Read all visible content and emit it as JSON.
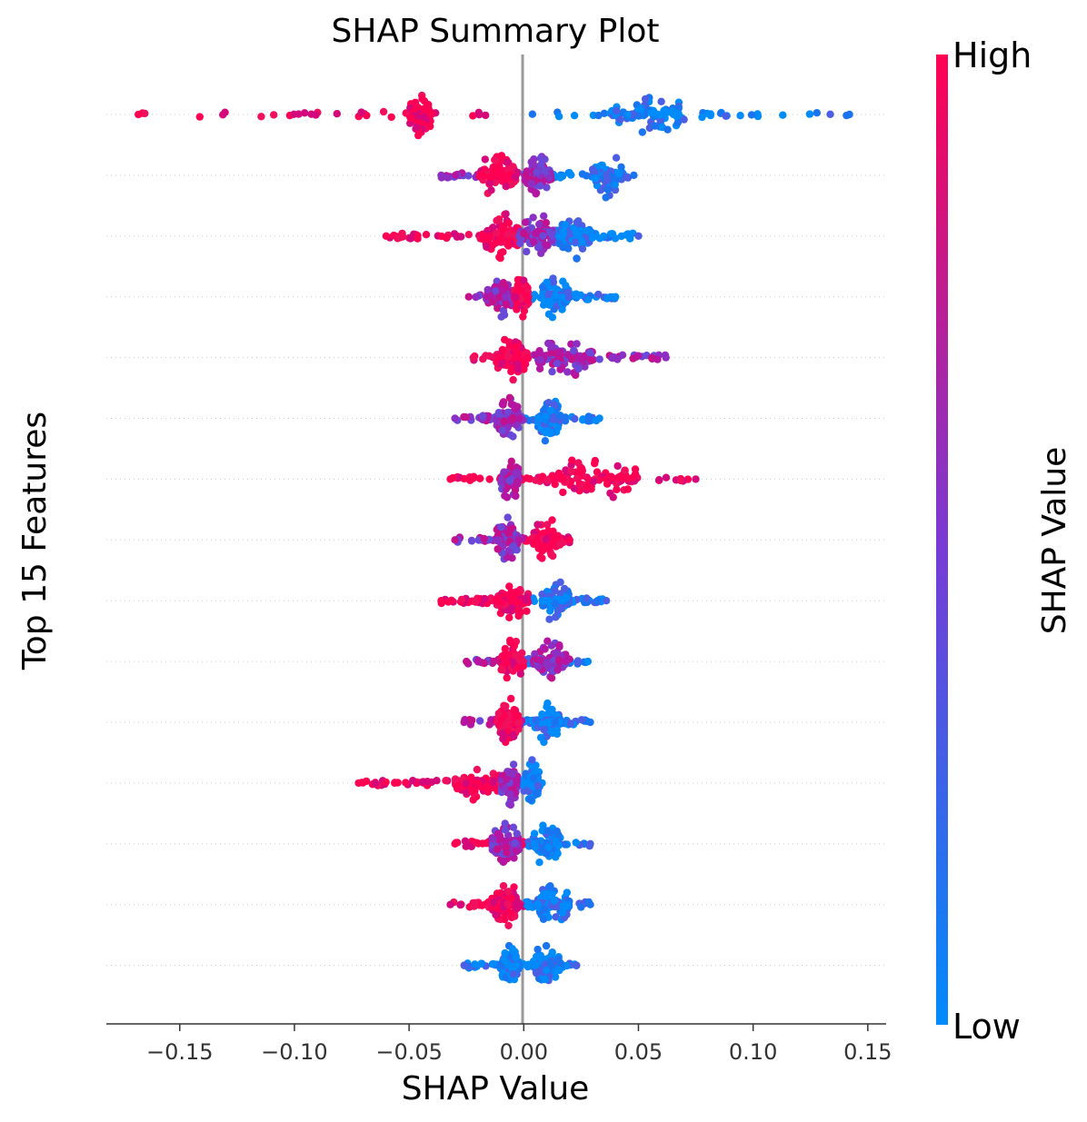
{
  "chart_data": {
    "type": "scatter",
    "title": "SHAP Summary Plot",
    "xlabel": "SHAP Value",
    "ylabel": "Top 15 Features",
    "xlim": [
      -0.182,
      0.158
    ],
    "xticks": [
      -0.15,
      -0.1,
      -0.05,
      0.0,
      0.05,
      0.1,
      0.15
    ],
    "xtick_labels": [
      "−0.15",
      "−0.10",
      "−0.05",
      "0.00",
      "0.05",
      "0.10",
      "0.15"
    ],
    "zero_line": true,
    "row_gridlines": "dotted",
    "colorbar": {
      "label": "SHAP Value",
      "high_label": "High",
      "low_label": "Low",
      "high_color": "#ff0052",
      "low_color": "#008bfb"
    },
    "rows": [
      {
        "min": -0.168,
        "max": 0.142,
        "core": [
          [
            -0.05,
            -0.04,
            "high"
          ],
          [
            0.038,
            0.07,
            "low"
          ]
        ],
        "tail_left": "high",
        "tail_right": "low"
      },
      {
        "min": -0.036,
        "max": 0.048,
        "core": [
          [
            -0.02,
            -0.003,
            "high"
          ],
          [
            0.0,
            0.012,
            "mid"
          ],
          [
            0.03,
            0.043,
            "low"
          ]
        ],
        "tail_left": "mid",
        "tail_right": "low"
      },
      {
        "min": -0.06,
        "max": 0.05,
        "core": [
          [
            -0.018,
            -0.002,
            "high"
          ],
          [
            -0.002,
            0.014,
            "mid"
          ],
          [
            0.014,
            0.03,
            "low"
          ]
        ],
        "tail_left": "high",
        "tail_right": "low"
      },
      {
        "min": -0.024,
        "max": 0.04,
        "core": [
          [
            -0.016,
            -0.004,
            "mid"
          ],
          [
            -0.004,
            0.002,
            "high"
          ],
          [
            0.008,
            0.02,
            "low"
          ]
        ],
        "tail_left": "mid",
        "tail_right": "low"
      },
      {
        "min": -0.022,
        "max": 0.062,
        "core": [
          [
            -0.012,
            0.002,
            "high"
          ],
          [
            0.006,
            0.03,
            "mid"
          ]
        ],
        "tail_left": "high",
        "tail_right": "mid"
      },
      {
        "min": -0.03,
        "max": 0.033,
        "core": [
          [
            -0.012,
            -0.002,
            "mid"
          ],
          [
            0.006,
            0.016,
            "low"
          ]
        ],
        "tail_left": "mid",
        "tail_right": "low"
      },
      {
        "min": -0.032,
        "max": 0.075,
        "core": [
          [
            -0.01,
            -0.002,
            "mid"
          ],
          [
            0.01,
            0.05,
            "high"
          ]
        ],
        "tail_left": "high",
        "tail_right": "high"
      },
      {
        "min": -0.03,
        "max": 0.02,
        "core": [
          [
            -0.012,
            -0.002,
            "mid"
          ],
          [
            0.004,
            0.016,
            "high"
          ]
        ],
        "tail_left": "mid",
        "tail_right": "high"
      },
      {
        "min": -0.036,
        "max": 0.036,
        "core": [
          [
            -0.012,
            0.002,
            "high"
          ],
          [
            0.008,
            0.02,
            "low"
          ]
        ],
        "tail_left": "high",
        "tail_right": "low"
      },
      {
        "min": -0.025,
        "max": 0.028,
        "core": [
          [
            -0.01,
            0.0,
            "high"
          ],
          [
            0.004,
            0.02,
            "mid"
          ]
        ],
        "tail_left": "mid",
        "tail_right": "low"
      },
      {
        "min": -0.026,
        "max": 0.029,
        "core": [
          [
            -0.012,
            -0.002,
            "high"
          ],
          [
            0.004,
            0.016,
            "low"
          ]
        ],
        "tail_left": "mid",
        "tail_right": "low"
      },
      {
        "min": -0.072,
        "max": 0.008,
        "core": [
          [
            -0.03,
            -0.01,
            "high"
          ],
          [
            -0.01,
            -0.002,
            "mid"
          ],
          [
            0.0,
            0.007,
            "low"
          ]
        ],
        "tail_left": "high",
        "tail_right": "low"
      },
      {
        "min": -0.03,
        "max": 0.029,
        "core": [
          [
            -0.014,
            -0.002,
            "mid"
          ],
          [
            0.004,
            0.016,
            "low"
          ]
        ],
        "tail_left": "high",
        "tail_right": "low"
      },
      {
        "min": -0.032,
        "max": 0.029,
        "core": [
          [
            -0.014,
            -0.002,
            "high"
          ],
          [
            0.006,
            0.02,
            "low"
          ]
        ],
        "tail_left": "high",
        "tail_right": "low"
      },
      {
        "min": -0.026,
        "max": 0.023,
        "core": [
          [
            -0.01,
            -0.002,
            "low"
          ],
          [
            0.004,
            0.016,
            "low"
          ]
        ],
        "tail_left": "low",
        "tail_right": "low"
      }
    ]
  }
}
